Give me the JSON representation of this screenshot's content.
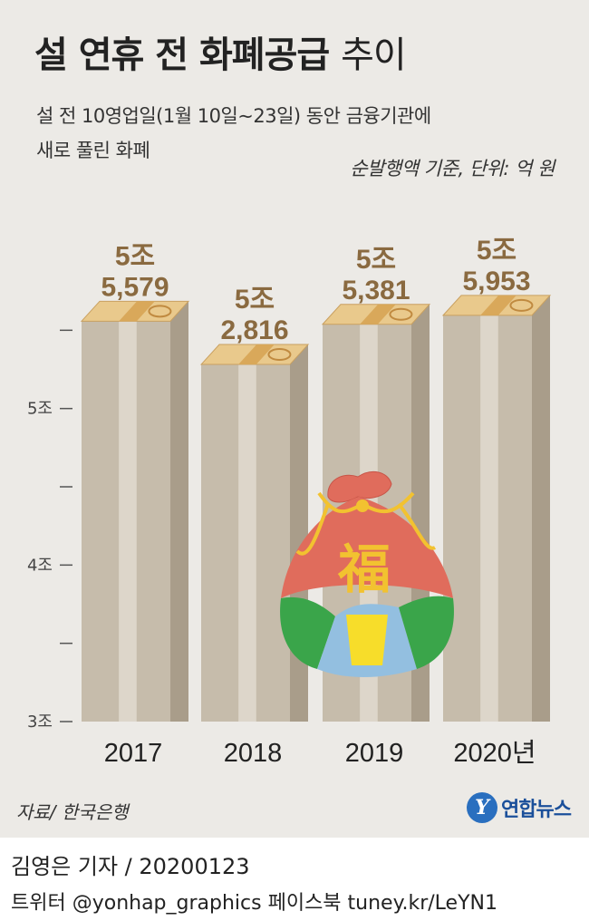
{
  "header": {
    "title_bold": "설 연휴 전 화폐공급",
    "title_light": "추이",
    "subtitle_line1": "설 전 10영업일(1월 10일∼23일) 동안 금융기관에",
    "subtitle_line2": "새로 풀린 화폐",
    "unit_note": "순발행액 기준, 단위: 억 원"
  },
  "chart_data": {
    "type": "bar",
    "categories": [
      "2017",
      "2018",
      "2019",
      "2020년"
    ],
    "values": [
      55579,
      52816,
      55381,
      55953
    ],
    "value_labels": [
      [
        "5조",
        "5,579"
      ],
      [
        "5조",
        "2,816"
      ],
      [
        "5조",
        "5,381"
      ],
      [
        "5조",
        "5,953"
      ]
    ],
    "ylim": [
      30000,
      60000
    ],
    "y_ticks": [
      {
        "value": 30000,
        "label": "3조"
      },
      {
        "value": 35000,
        "label": ""
      },
      {
        "value": 40000,
        "label": "4조"
      },
      {
        "value": 45000,
        "label": ""
      },
      {
        "value": 50000,
        "label": "5조"
      },
      {
        "value": 55000,
        "label": ""
      }
    ],
    "bar_colors": {
      "front": "#c6bcab",
      "side": "#a99d8a",
      "stripe": "#ddd6ca",
      "money": "#e9c98c",
      "band": "#d9a85a"
    }
  },
  "decoration": {
    "pouch_character": "福",
    "pouch_colors": {
      "top": "#e06c5c",
      "left": "#3aa54a",
      "middle": "#93bfe0",
      "right": "#3aa54a",
      "knot": "#f2c230"
    }
  },
  "footer": {
    "source": "자료/ 한국은행",
    "logo_mark": "Y",
    "logo_text": "연합뉴스",
    "reporter": "김영은 기자 / 20200123",
    "social": "트위터 @yonhap_graphics  페이스북 tuney.kr/LeYN1"
  }
}
